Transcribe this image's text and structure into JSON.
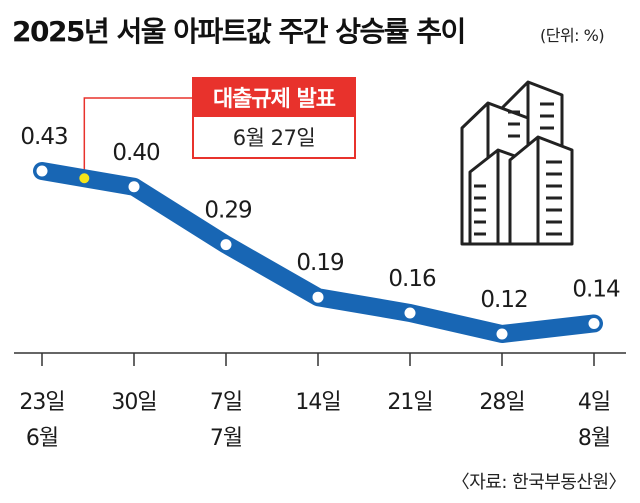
{
  "chart_data": {
    "type": "line",
    "title": "2025년 서울 아파트값 주간 상승률 추이",
    "unit": "(단위: %)",
    "source": "〈자료: 한국부동산원〉",
    "categories": [
      [
        "23일",
        "6월"
      ],
      [
        "30일",
        ""
      ],
      [
        "7일",
        "7월"
      ],
      [
        "14일",
        ""
      ],
      [
        "21일",
        ""
      ],
      [
        "28일",
        ""
      ],
      [
        "4일",
        "8월"
      ]
    ],
    "values": [
      0.43,
      0.4,
      0.29,
      0.19,
      0.16,
      0.12,
      0.14
    ],
    "data_labels": [
      "0.43",
      "0.40",
      "0.29",
      "0.19",
      "0.16",
      "0.12",
      "0.14"
    ],
    "series": [
      {
        "values": [
          0.43,
          0.4,
          0.29,
          0.19,
          0.16,
          0.12,
          0.14
        ]
      }
    ],
    "annotation": {
      "title": "대출규제 발표",
      "date": "6월 27일",
      "position_between": [
        "23일",
        "30일"
      ]
    },
    "grid": false,
    "colors": {
      "line": "#1866b4",
      "marker": "#ffffff",
      "annotation": "#e8322c",
      "annotation_marker": "#f5e41a",
      "icon_fill": "#ffffff",
      "icon_stroke": "#222222"
    },
    "icon": "apartment-buildings-icon"
  }
}
